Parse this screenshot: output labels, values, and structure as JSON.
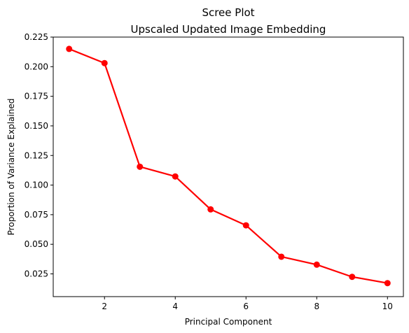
{
  "chart_data": {
    "type": "line",
    "title": "Scree Plot",
    "subtitle": "Upscaled Updated Image Embedding",
    "xlabel": "Principal Component",
    "ylabel": "Proportion of Variance Explained",
    "x": [
      1,
      2,
      3,
      4,
      5,
      6,
      7,
      8,
      9,
      10
    ],
    "series": [
      {
        "values": [
          0.215,
          0.203,
          0.1155,
          0.1073,
          0.0795,
          0.066,
          0.0395,
          0.0328,
          0.0225,
          0.0172
        ]
      }
    ],
    "xlim": [
      0.55,
      10.45
    ],
    "ylim": [
      0.0058,
      0.225
    ],
    "xticks": [
      2,
      4,
      6,
      8,
      10
    ],
    "xtick_labels": [
      "2",
      "4",
      "6",
      "8",
      "10"
    ],
    "yticks": [
      0.025,
      0.05,
      0.075,
      0.1,
      0.125,
      0.15,
      0.175,
      0.2,
      0.225
    ],
    "ytick_labels": [
      "0.025",
      "0.050",
      "0.075",
      "0.100",
      "0.125",
      "0.150",
      "0.175",
      "0.200",
      "0.225"
    ],
    "grid": false,
    "line_color": "#ff0000",
    "marker": "circle"
  }
}
